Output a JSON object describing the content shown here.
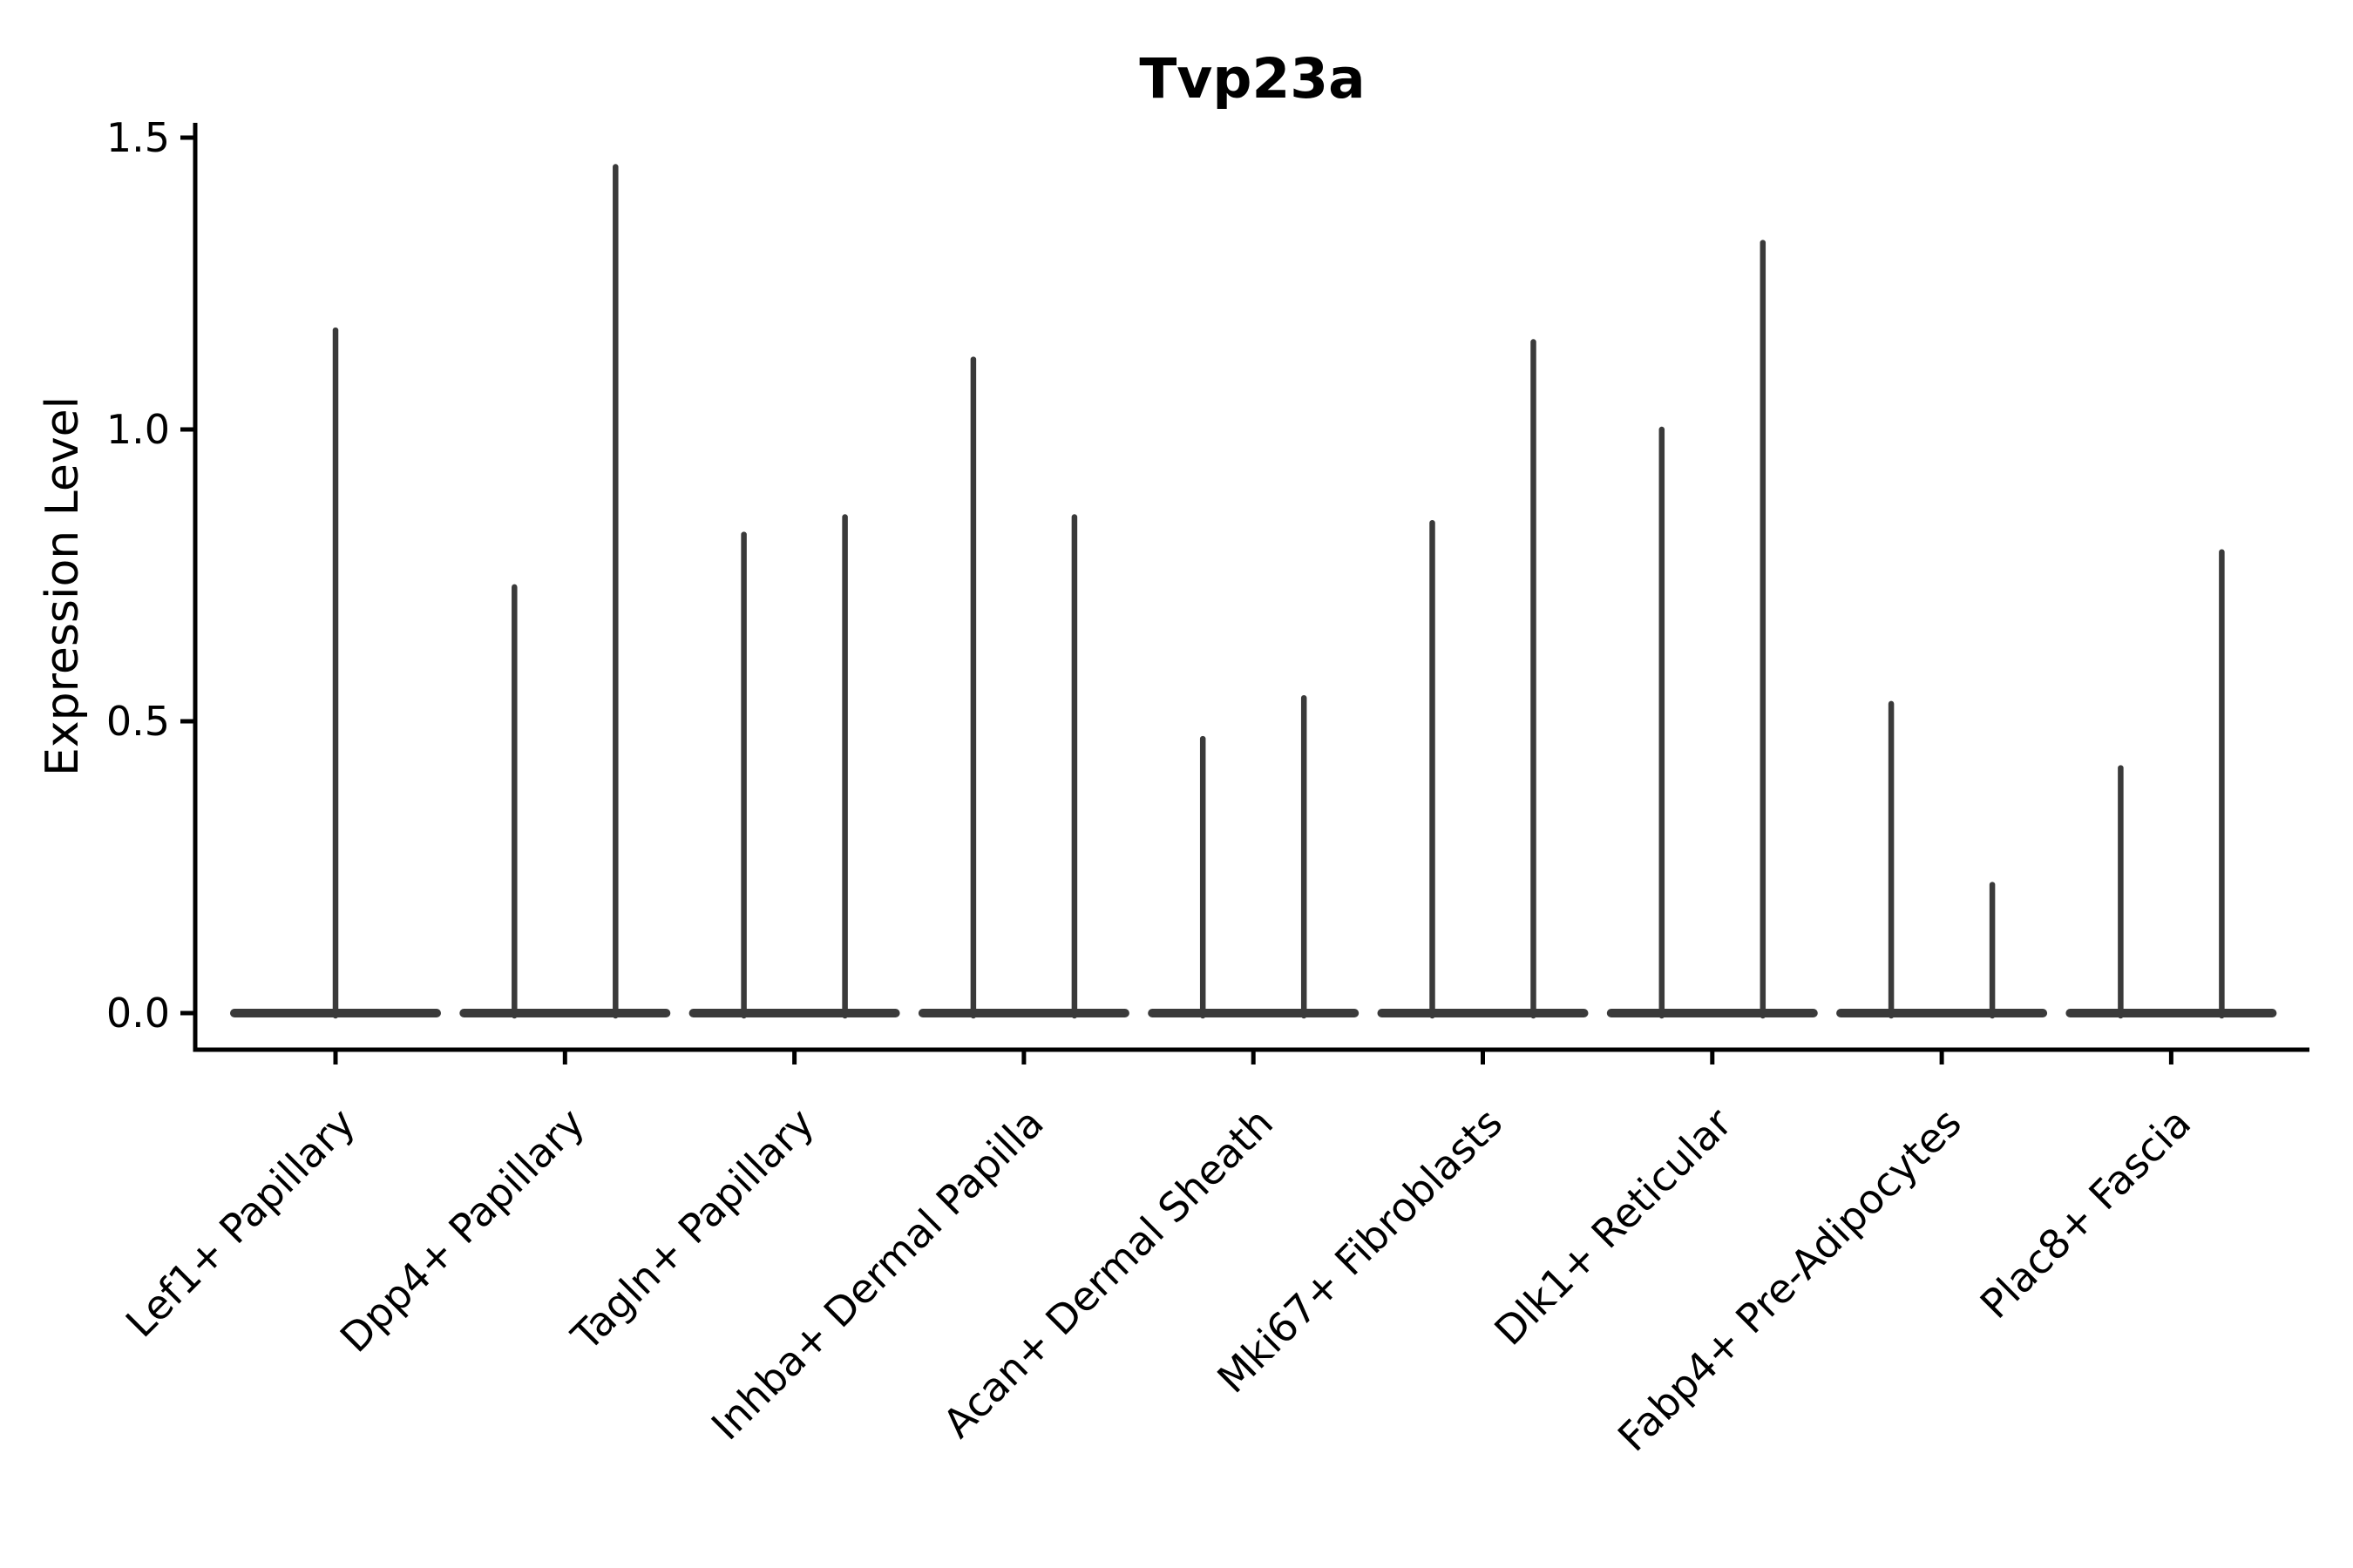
{
  "chart_data": {
    "type": "violin",
    "title": "Tvp23a",
    "ylabel": "Expression Level",
    "xlabel": "",
    "ylim": [
      -0.06,
      1.52
    ],
    "yticks": [
      0.0,
      0.5,
      1.0,
      1.5
    ],
    "ytick_labels": [
      "0.0",
      "0.5",
      "1.0",
      "1.5"
    ],
    "grid": false,
    "legend": false,
    "baseline_value": 0.0,
    "violin_color": "#3a3a3a",
    "axis_color": "#000000",
    "background_color": "#ffffff",
    "categories": [
      {
        "label": "Lef1+ Papillary",
        "groups": [
          {
            "max_expression": 1.17
          }
        ]
      },
      {
        "label": "Dpp4+ Papillary",
        "groups": [
          {
            "max_expression": 0.73
          },
          {
            "max_expression": 1.45
          }
        ]
      },
      {
        "label": "Tagln+ Papillary",
        "groups": [
          {
            "max_expression": 0.82
          },
          {
            "max_expression": 0.85
          }
        ]
      },
      {
        "label": "Inhba+ Dermal Papilla",
        "groups": [
          {
            "max_expression": 1.12
          },
          {
            "max_expression": 0.85
          }
        ]
      },
      {
        "label": "Acan+ Dermal Sheath",
        "groups": [
          {
            "max_expression": 0.47
          },
          {
            "max_expression": 0.54
          }
        ]
      },
      {
        "label": "Mki67+ Fibroblasts",
        "groups": [
          {
            "max_expression": 0.84
          },
          {
            "max_expression": 1.15
          }
        ]
      },
      {
        "label": "Dlk1+ Reticular",
        "groups": [
          {
            "max_expression": 1.0
          },
          {
            "max_expression": 1.32
          }
        ]
      },
      {
        "label": "Fabp4+ Pre-Adipocytes",
        "groups": [
          {
            "max_expression": 0.53
          },
          {
            "max_expression": 0.22
          }
        ]
      },
      {
        "label": "Plac8+ Fascia",
        "groups": [
          {
            "max_expression": 0.42
          },
          {
            "max_expression": 0.79
          }
        ]
      }
    ]
  }
}
